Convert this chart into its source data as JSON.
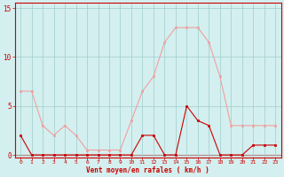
{
  "x": [
    0,
    1,
    2,
    3,
    4,
    5,
    6,
    7,
    8,
    9,
    10,
    11,
    12,
    13,
    14,
    15,
    16,
    17,
    18,
    19,
    20,
    21,
    22,
    23
  ],
  "wind_avg": [
    2,
    0,
    0,
    0,
    0,
    0,
    0,
    0,
    0,
    0,
    0,
    2,
    2,
    0,
    0,
    5,
    3.5,
    3,
    0,
    0,
    0,
    1,
    1,
    1
  ],
  "wind_gust": [
    6.5,
    6.5,
    3,
    2,
    3,
    2,
    0.5,
    0.5,
    0.5,
    0.5,
    3.5,
    6.5,
    8,
    11.5,
    13,
    13,
    13,
    11.5,
    8,
    3,
    3,
    3,
    3,
    3
  ],
  "line_avg_color": "#cc0000",
  "line_gust_color": "#f0a0a0",
  "marker_avg_color": "#cc0000",
  "marker_gust_color": "#f0a0a0",
  "bg_color": "#d4efef",
  "grid_color": "#a0cccc",
  "axis_color": "#cc0000",
  "tick_color": "#cc0000",
  "xlabel": "Vent moyen/en rafales ( km/h )",
  "ylim": [
    -0.3,
    15.5
  ],
  "xlim": [
    -0.5,
    23.5
  ],
  "yticks": [
    0,
    5,
    10,
    15
  ],
  "xticks": [
    0,
    1,
    2,
    3,
    4,
    5,
    6,
    7,
    8,
    9,
    10,
    11,
    12,
    13,
    14,
    15,
    16,
    17,
    18,
    19,
    20,
    21,
    22,
    23
  ]
}
